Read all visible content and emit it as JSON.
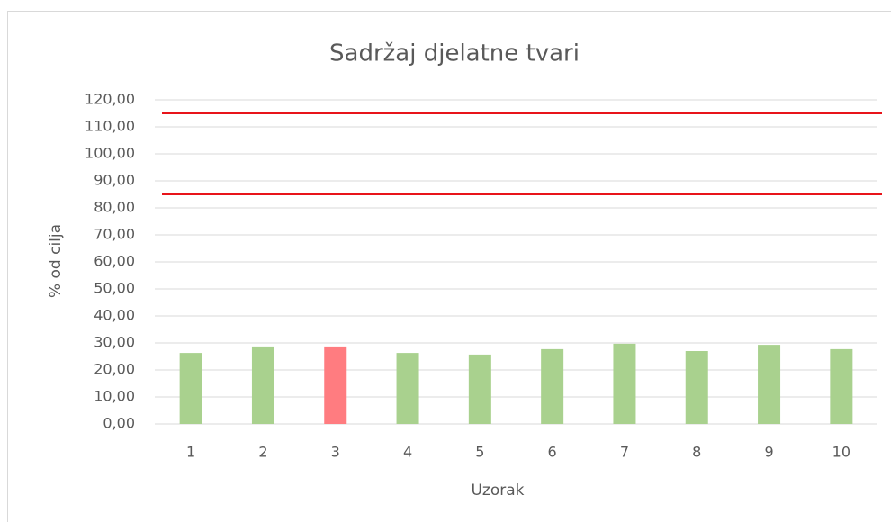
{
  "chart_data": {
    "type": "bar",
    "title": "Sadržaj djelatne tvari",
    "x_label": "Uzorak",
    "y_label": "% od cilja",
    "categories": [
      "1",
      "2",
      "3",
      "4",
      "5",
      "6",
      "7",
      "8",
      "9",
      "10"
    ],
    "values": [
      26.3,
      28.7,
      28.7,
      26.3,
      25.7,
      27.7,
      29.7,
      27.0,
      29.3,
      27.7
    ],
    "colors": [
      "#a9d18e",
      "#a9d18e",
      "#ff7c80",
      "#a9d18e",
      "#a9d18e",
      "#a9d18e",
      "#a9d18e",
      "#a9d18e",
      "#a9d18e",
      "#a9d18e"
    ],
    "reference_lines": [
      115,
      85
    ],
    "reference_color": "#e8141a",
    "ylim": [
      0,
      120
    ],
    "yticks": [
      {
        "value": 0,
        "label": "0,00"
      },
      {
        "value": 10,
        "label": "10,00"
      },
      {
        "value": 20,
        "label": "20,00"
      },
      {
        "value": 30,
        "label": "30,00"
      },
      {
        "value": 40,
        "label": "40,00"
      },
      {
        "value": 50,
        "label": "50,00"
      },
      {
        "value": 60,
        "label": "60,00"
      },
      {
        "value": 70,
        "label": "70,00"
      },
      {
        "value": 80,
        "label": "80,00"
      },
      {
        "value": 90,
        "label": "90,00"
      },
      {
        "value": 100,
        "label": "100,00"
      },
      {
        "value": 110,
        "label": "110,00"
      },
      {
        "value": 120,
        "label": "120,00"
      }
    ],
    "grid": true
  }
}
